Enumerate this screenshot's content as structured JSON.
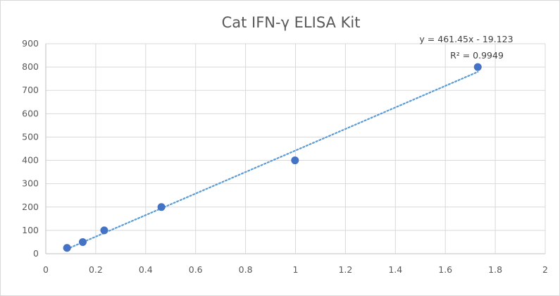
{
  "chart_data": {
    "type": "scatter",
    "title": "Cat IFN-γ ELISA Kit",
    "xlabel": "",
    "ylabel": "",
    "xlim": [
      0,
      2
    ],
    "ylim": [
      0,
      900
    ],
    "x_ticks": [
      0,
      0.2,
      0.4,
      0.6,
      0.8,
      1,
      1.2,
      1.4,
      1.6,
      1.8,
      2
    ],
    "y_ticks": [
      0,
      100,
      200,
      300,
      400,
      500,
      600,
      700,
      800,
      900
    ],
    "grid": true,
    "series": [
      {
        "x": [
          0.085,
          0.148,
          0.234,
          0.463,
          0.998,
          1.73
        ],
        "y": [
          25,
          50,
          100,
          200,
          400,
          800
        ],
        "color": "#4472c4"
      }
    ],
    "trendline": {
      "type": "linear",
      "slope": 461.45,
      "intercept": -19.123,
      "x_range": [
        0.085,
        1.73
      ],
      "color": "#5b9bd5",
      "style": "dotted",
      "equation_label": "y = 461.45x - 19.123",
      "r2_label": "R² = 0.9949"
    }
  }
}
